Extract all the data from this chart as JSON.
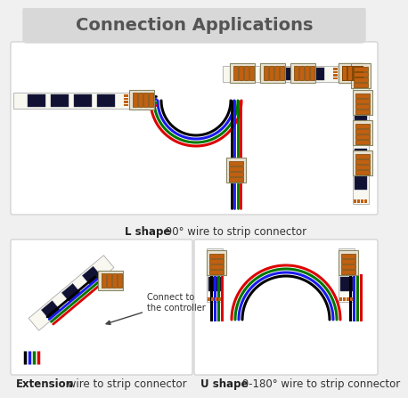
{
  "title": "Connection Applications",
  "title_fontsize": 14,
  "title_bg_color": "#d8d8d8",
  "title_text_color": "#555555",
  "bg_color": "#f0f0f0",
  "panel_bg": "#ffffff",
  "border_color": "#cccccc",
  "wire_colors": [
    "#000000",
    "#1a1aee",
    "#007700",
    "#dd0000"
  ],
  "connector_body": "#e8e0d0",
  "connector_term": "#c06010",
  "led_dark": "#111111",
  "pcb_color": "#f8f8f0",
  "label_l": {
    "bold": "L shape",
    "normal": ": 90° wire to strip connector"
  },
  "label_ext": {
    "bold": "Extension",
    "normal": ": wire to strip connector"
  },
  "label_u": {
    "bold": "U shape",
    "normal": ": 0-180° wire to strip connector"
  },
  "connect_label": "Connect to\nthe controller"
}
